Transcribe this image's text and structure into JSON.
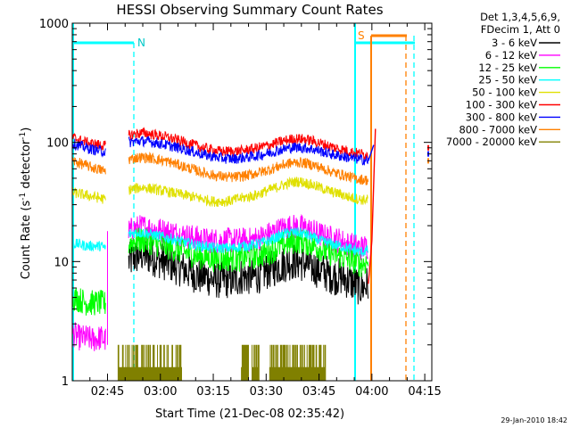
{
  "chart_data": {
    "type": "line",
    "title": "HESSI Observing Summary Count Rates",
    "xlabel": "Start Time (21-Dec-08 02:35:42)",
    "ylabel_main": "Count Rate (s",
    "ylabel_sup1": "-1",
    "ylabel_mid": " detector",
    "ylabel_sup2": "-1",
    "ylabel_end": ")",
    "y_scale": "log",
    "ylim": [
      1,
      1000
    ],
    "xlim_minutes": [
      0,
      102
    ],
    "x_tick_minutes": [
      10,
      25,
      40,
      55,
      70,
      85,
      100
    ],
    "x_tick_labels": [
      "02:45",
      "03:00",
      "03:15",
      "03:30",
      "03:45",
      "04:00",
      "04:15"
    ],
    "y_tick_values": [
      1,
      10,
      100,
      1000
    ],
    "y_tick_labels": [
      "1",
      "10",
      "100",
      "1000"
    ],
    "legend_header": [
      "Det 1,3,4,5,6,9,",
      "FDecim 1, Att 0"
    ],
    "legend_position": "right",
    "timestamp": "29-Jan-2010 18:42",
    "grid": false,
    "x": [
      0,
      2,
      4,
      6,
      8,
      9.5,
      10.5,
      12,
      14,
      15,
      16,
      18,
      20,
      22,
      24,
      26,
      28,
      30,
      32,
      34,
      36,
      38,
      40,
      42,
      44,
      46,
      48,
      50,
      52,
      54,
      56,
      58,
      60,
      62,
      64,
      66,
      68,
      70,
      72,
      74,
      76,
      78,
      80,
      82,
      84
    ],
    "series": [
      {
        "name": "3 - 6 keV",
        "color": "#000000",
        "values": [
          null,
          null,
          null,
          null,
          null,
          null,
          null,
          null,
          null,
          null,
          10,
          11,
          11.5,
          11,
          10.5,
          10,
          9.5,
          9,
          8.5,
          8,
          7.5,
          7.5,
          7,
          7,
          7,
          7,
          7.5,
          7.5,
          7.5,
          8,
          8.5,
          9,
          9.5,
          10,
          10,
          9.5,
          9,
          8.5,
          8,
          7.5,
          7.5,
          7,
          6.5,
          6,
          6.5
        ]
      },
      {
        "name": "6 - 12 keV",
        "color": "#ff00ff",
        "values": [
          2.5,
          2.3,
          2.3,
          2.2,
          2.3,
          2.2,
          null,
          null,
          null,
          null,
          18,
          19,
          19.5,
          19,
          18.5,
          18,
          17.5,
          17,
          16.5,
          16,
          15.5,
          15,
          15,
          15,
          15,
          15,
          15,
          15,
          15.5,
          16,
          17,
          18,
          19,
          19.5,
          19.5,
          19,
          18,
          17,
          16,
          15.5,
          15,
          14,
          13.5,
          13,
          13.5
        ]
      },
      {
        "name": "12 - 25 keV",
        "color": "#00ff00",
        "values": [
          5,
          4.8,
          4.5,
          4.5,
          4.5,
          4.4,
          null,
          null,
          null,
          null,
          14,
          15,
          15,
          14.5,
          14,
          13.5,
          13,
          12.5,
          12,
          11.5,
          11,
          11,
          10.5,
          10.5,
          10.5,
          10.5,
          10.5,
          11,
          11,
          11.5,
          12,
          13,
          14,
          14.5,
          15,
          14.5,
          14,
          13,
          12,
          11.5,
          11,
          10.5,
          10,
          9.5,
          10
        ]
      },
      {
        "name": "25 - 50 keV",
        "color": "#00ffff",
        "values": [
          14,
          14,
          13.5,
          13.5,
          13.5,
          13,
          null,
          null,
          null,
          null,
          17,
          17.5,
          17.5,
          17,
          16.5,
          16,
          15.5,
          15,
          14.5,
          14,
          13.5,
          13.5,
          13,
          13,
          13,
          13,
          13.5,
          13.5,
          14,
          14.5,
          15,
          16,
          17,
          17.5,
          17.5,
          17,
          16,
          15,
          14.5,
          14,
          13.5,
          13,
          12.5,
          12,
          12.5
        ]
      },
      {
        "name": "50 - 100 keV",
        "color": "#e0e000",
        "values": [
          38,
          37,
          36,
          35,
          34,
          33,
          null,
          null,
          null,
          null,
          40,
          41,
          42,
          41,
          40,
          39,
          38,
          37,
          36,
          35,
          34,
          33,
          32,
          32,
          32,
          33,
          34,
          35,
          36,
          38,
          40,
          42,
          44,
          46,
          47,
          46,
          44,
          42,
          40,
          38,
          37,
          35,
          34,
          33,
          33
        ]
      },
      {
        "name": "100 - 300 keV",
        "color": "#ff0000",
        "values": [
          110,
          105,
          100,
          97,
          95,
          93,
          null,
          null,
          null,
          null,
          115,
          118,
          120,
          118,
          115,
          112,
          108,
          104,
          100,
          96,
          92,
          89,
          86,
          84,
          84,
          84,
          85,
          87,
          89,
          92,
          95,
          99,
          103,
          106,
          107,
          106,
          103,
          99,
          95,
          91,
          88,
          85,
          82,
          80,
          78
        ]
      },
      {
        "name": "300 - 800 keV",
        "color": "#0000ff",
        "values": [
          98,
          94,
          90,
          87,
          85,
          83,
          null,
          null,
          null,
          null,
          100,
          102,
          103,
          101,
          99,
          96,
          93,
          90,
          87,
          84,
          81,
          78,
          76,
          74,
          73,
          73,
          74,
          75,
          77,
          79,
          82,
          85,
          88,
          90,
          91,
          90,
          88,
          85,
          82,
          79,
          77,
          75,
          73,
          72,
          70
        ]
      },
      {
        "name": "800 - 7000 keV",
        "color": "#ff8000",
        "values": [
          70,
          67,
          64,
          61,
          59,
          57,
          null,
          null,
          null,
          null,
          72,
          74,
          75,
          74,
          72,
          70,
          68,
          65,
          62,
          60,
          57,
          55,
          53,
          52,
          51,
          51,
          52,
          53,
          55,
          57,
          59,
          62,
          65,
          67,
          68,
          67,
          65,
          62,
          59,
          56,
          54,
          52,
          50,
          49,
          48
        ]
      },
      {
        "name": "7000 - 20000 keV",
        "color": "#808000",
        "values": [
          null,
          null,
          null,
          null,
          null,
          null,
          null,
          null,
          null,
          null,
          null,
          null,
          null,
          null,
          null,
          null,
          null,
          null,
          null,
          null,
          null,
          null,
          null,
          null,
          null,
          null,
          null,
          null,
          null,
          null,
          null,
          null,
          null,
          null,
          null,
          null,
          null,
          null,
          null,
          null,
          null,
          null,
          null,
          null,
          null
        ]
      }
    ],
    "annotations": [
      {
        "text": "N",
        "color": "#00c8c8"
      },
      {
        "text": "S",
        "color": "#ff8000"
      }
    ]
  }
}
